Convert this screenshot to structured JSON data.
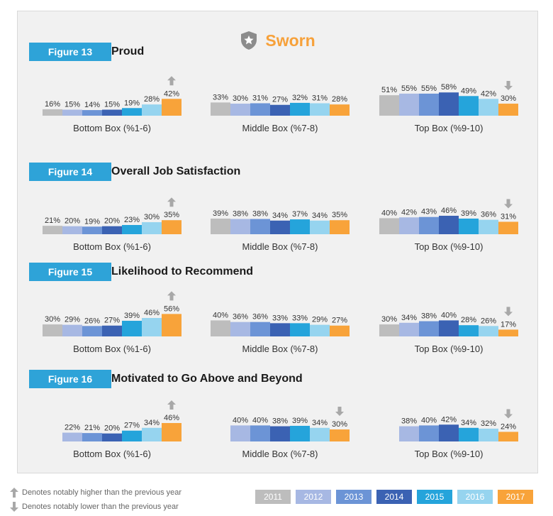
{
  "header": {
    "title": "Sworn",
    "icon": "police-badge-icon"
  },
  "colors": [
    "#bdbdbd",
    "#a7b8e3",
    "#6c94d6",
    "#3b62b3",
    "#25a4db",
    "#96d4ef",
    "#f8a33a"
  ],
  "arrow_color": "#a8a8a8",
  "chart_data": [
    {
      "type": "bar",
      "figure_label": "Figure 13",
      "title": "Proud",
      "categories": [
        "Bottom Box (%1-6)",
        "Middle Box (%7-8)",
        "Top Box (%9-10)"
      ],
      "series": [
        {
          "name": "2011",
          "values": [
            16,
            33,
            51
          ]
        },
        {
          "name": "2012",
          "values": [
            15,
            30,
            55
          ]
        },
        {
          "name": "2013",
          "values": [
            14,
            31,
            55
          ]
        },
        {
          "name": "2014",
          "values": [
            15,
            27,
            58
          ]
        },
        {
          "name": "2015",
          "values": [
            19,
            32,
            49
          ]
        },
        {
          "name": "2016",
          "values": [
            28,
            31,
            42
          ]
        },
        {
          "name": "2017",
          "values": [
            42,
            28,
            30
          ]
        }
      ],
      "arrows": [
        {
          "group": 0,
          "direction": "up"
        },
        {
          "group": 2,
          "direction": "down"
        }
      ]
    },
    {
      "type": "bar",
      "figure_label": "Figure 14",
      "title": "Overall Job Satisfaction",
      "categories": [
        "Bottom Box (%1-6)",
        "Middle Box (%7-8)",
        "Top Box (%9-10)"
      ],
      "series": [
        {
          "name": "2011",
          "values": [
            21,
            39,
            40
          ]
        },
        {
          "name": "2012",
          "values": [
            20,
            38,
            42
          ]
        },
        {
          "name": "2013",
          "values": [
            19,
            38,
            43
          ]
        },
        {
          "name": "2014",
          "values": [
            20,
            34,
            46
          ]
        },
        {
          "name": "2015",
          "values": [
            23,
            37,
            39
          ]
        },
        {
          "name": "2016",
          "values": [
            30,
            34,
            36
          ]
        },
        {
          "name": "2017",
          "values": [
            35,
            35,
            31
          ]
        }
      ],
      "arrows": [
        {
          "group": 0,
          "direction": "up"
        },
        {
          "group": 2,
          "direction": "down"
        }
      ]
    },
    {
      "type": "bar",
      "figure_label": "Figure 15",
      "title": "Likelihood to Recommend",
      "categories": [
        "Bottom Box (%1-6)",
        "Middle Box (%7-8)",
        "Top Box (%9-10)"
      ],
      "series": [
        {
          "name": "2011",
          "values": [
            30,
            40,
            30
          ]
        },
        {
          "name": "2012",
          "values": [
            29,
            36,
            34
          ]
        },
        {
          "name": "2013",
          "values": [
            26,
            36,
            38
          ]
        },
        {
          "name": "2014",
          "values": [
            27,
            33,
            40
          ]
        },
        {
          "name": "2015",
          "values": [
            39,
            33,
            28
          ]
        },
        {
          "name": "2016",
          "values": [
            46,
            29,
            26
          ]
        },
        {
          "name": "2017",
          "values": [
            56,
            27,
            17
          ]
        }
      ],
      "arrows": [
        {
          "group": 0,
          "direction": "up"
        },
        {
          "group": 2,
          "direction": "down"
        }
      ]
    },
    {
      "type": "bar",
      "figure_label": "Figure 16",
      "title": "Motivated to Go Above and Beyond",
      "categories": [
        "Bottom Box (%1-6)",
        "Middle Box (%7-8)",
        "Top Box (%9-10)"
      ],
      "series": [
        {
          "name": "2011",
          "values": [
            null,
            null,
            null
          ]
        },
        {
          "name": "2012",
          "values": [
            22,
            40,
            38
          ]
        },
        {
          "name": "2013",
          "values": [
            21,
            40,
            40
          ]
        },
        {
          "name": "2014",
          "values": [
            20,
            38,
            42
          ]
        },
        {
          "name": "2015",
          "values": [
            27,
            39,
            34
          ]
        },
        {
          "name": "2016",
          "values": [
            34,
            34,
            32
          ]
        },
        {
          "name": "2017",
          "values": [
            46,
            30,
            24
          ]
        }
      ],
      "arrows": [
        {
          "group": 0,
          "direction": "up"
        },
        {
          "group": 1,
          "direction": "down"
        },
        {
          "group": 2,
          "direction": "down"
        }
      ]
    }
  ],
  "legend": {
    "years": [
      "2011",
      "2012",
      "2013",
      "2014",
      "2015",
      "2016",
      "2017"
    ],
    "higher_note": "Denotes notably higher than the previous year",
    "lower_note": "Denotes notably lower than the previous year"
  }
}
